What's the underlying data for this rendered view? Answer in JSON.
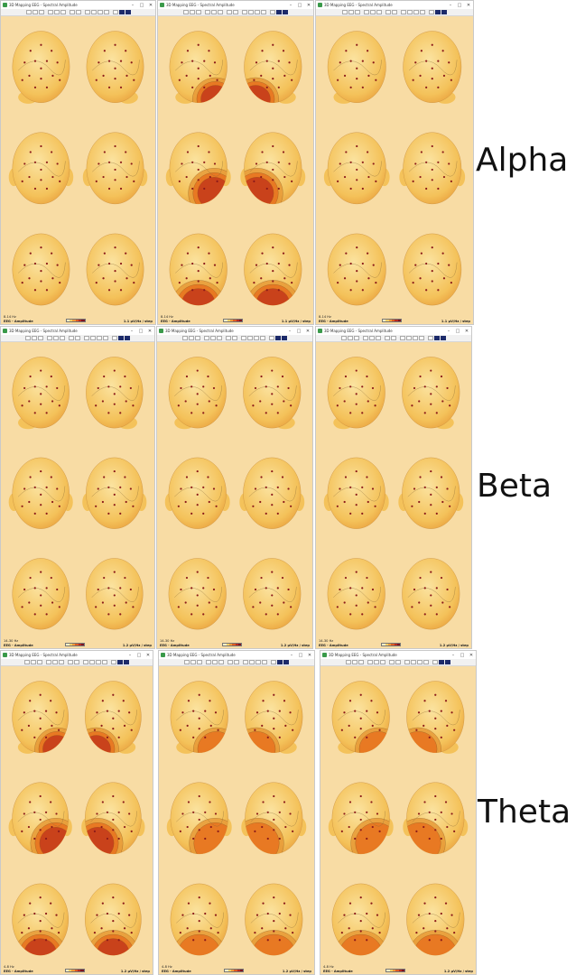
{
  "colors": {
    "background": "#f8dca4",
    "head_light": "#fbe3a0",
    "head_mid": "#f4c25a",
    "head_dark": "#e79a38",
    "hot_orange": "#e8731f",
    "hot_red": "#c4391b",
    "deep_red": "#9b1b22",
    "electrode": "#8b1a1a",
    "legend": [
      "#fff4c6",
      "#f7d068",
      "#ef9b3b",
      "#dd5c22",
      "#b82a1f",
      "#7e1520"
    ]
  },
  "icons": [
    "app-icon",
    "minimize-icon",
    "maximize-icon",
    "close-icon"
  ],
  "rows": [
    {
      "label": "Alpha",
      "windows": [
        {
          "title": "3D Mapping EEG - Spectral Amplitude",
          "band": "8-14 Hz",
          "mode": "EEG - Amplitude",
          "step": "1.1 µV/Hz / step",
          "heat": 0.18
        },
        {
          "title": "3D Mapping EEG - Spectral Amplitude",
          "band": "8-14 Hz",
          "mode": "EEG - Amplitude",
          "step": "1.1 µV/Hz / step",
          "heat": 0.8
        },
        {
          "title": "3D Mapping EEG - Spectral Amplitude",
          "band": "8-14 Hz",
          "mode": "EEG - Amplitude",
          "step": "1.1 µV/Hz / step",
          "heat": 0.2
        }
      ]
    },
    {
      "label": "Beta",
      "windows": [
        {
          "title": "3D Mapping EEG - Spectral Amplitude",
          "band": "14-30 Hz",
          "mode": "EEG - Amplitude",
          "step": "1.2 µV/Hz / step",
          "heat": 0.06
        },
        {
          "title": "3D Mapping EEG - Spectral Amplitude",
          "band": "14-30 Hz",
          "mode": "EEG - Amplitude",
          "step": "1.2 µV/Hz / step",
          "heat": 0.08
        },
        {
          "title": "3D Mapping EEG - Spectral Amplitude",
          "band": "14-30 Hz",
          "mode": "EEG - Amplitude",
          "step": "1.2 µV/Hz / step",
          "heat": 0.05
        }
      ]
    },
    {
      "label": "Theta",
      "windows": [
        {
          "title": "3D Mapping EEG - Spectral Amplitude",
          "band": "4-8 Hz",
          "mode": "EEG - Amplitude",
          "step": "1.2 µV/Hz / step",
          "heat": 0.65
        },
        {
          "title": "3D Mapping EEG - Spectral Amplitude",
          "band": "4-8 Hz",
          "mode": "EEG - Amplitude",
          "step": "1.2 µV/Hz / step",
          "heat": 0.6
        },
        {
          "title": "3D Mapping EEG - Spectral Amplitude",
          "band": "4-8 Hz",
          "mode": "EEG - Amplitude",
          "step": "1.2 µV/Hz / step",
          "heat": 0.6
        }
      ]
    }
  ]
}
